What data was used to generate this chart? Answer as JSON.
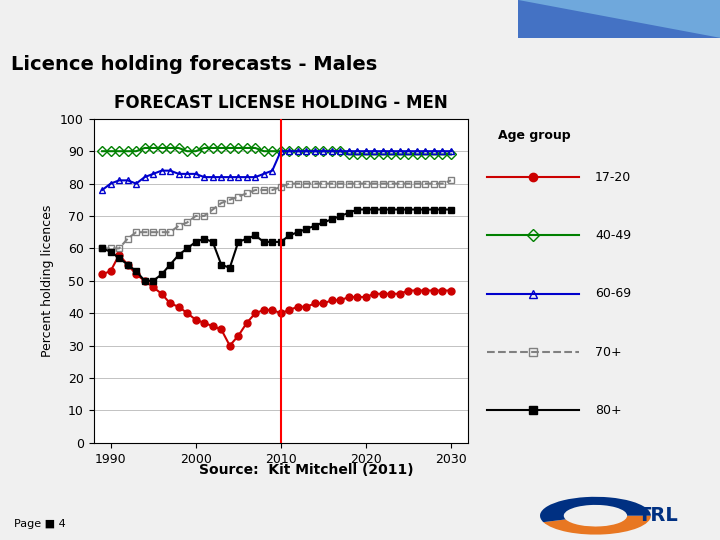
{
  "title_slide": "Licence holding forecasts - Males",
  "chart_title": "FORECAST LICENSE HOLDING - MEN",
  "ylabel": "Percent holding licences",
  "xlabel": "",
  "source": "Source:  Kit Mitchell (2011)",
  "page": "Page ■ 4",
  "vline_x": 2010,
  "ylim": [
    0,
    100
  ],
  "xlim": [
    1988,
    2032
  ],
  "yticks": [
    0,
    10,
    20,
    30,
    40,
    50,
    60,
    70,
    80,
    90,
    100
  ],
  "xticks": [
    1990,
    2000,
    2010,
    2020,
    2030
  ],
  "series_17_20": {
    "label": "17-20",
    "color": "#cc0000",
    "marker": "o",
    "markersize": 5,
    "linewidth": 1.5,
    "x": [
      1989,
      1990,
      1991,
      1992,
      1993,
      1994,
      1995,
      1996,
      1997,
      1998,
      1999,
      2000,
      2001,
      2002,
      2003,
      2004,
      2005,
      2006,
      2007,
      2008,
      2009,
      2010,
      2011,
      2012,
      2013,
      2014,
      2015,
      2016,
      2017,
      2018,
      2019,
      2020,
      2021,
      2022,
      2023,
      2024,
      2025,
      2026,
      2027,
      2028,
      2029,
      2030
    ],
    "y": [
      52,
      53,
      58,
      55,
      52,
      50,
      48,
      46,
      43,
      42,
      40,
      38,
      37,
      36,
      35,
      30,
      33,
      37,
      40,
      41,
      41,
      40,
      41,
      42,
      42,
      43,
      43,
      44,
      44,
      45,
      45,
      45,
      46,
      46,
      46,
      46,
      47,
      47,
      47,
      47,
      47,
      47
    ]
  },
  "series_40_49": {
    "label": "40-49",
    "color": "#008000",
    "marker": "D",
    "markersize": 5,
    "linewidth": 1.5,
    "linestyle": "-",
    "x": [
      1989,
      1990,
      1991,
      1992,
      1993,
      1994,
      1995,
      1996,
      1997,
      1998,
      1999,
      2000,
      2001,
      2002,
      2003,
      2004,
      2005,
      2006,
      2007,
      2008,
      2009,
      2010,
      2011,
      2012,
      2013,
      2014,
      2015,
      2016,
      2017,
      2018,
      2019,
      2020,
      2021,
      2022,
      2023,
      2024,
      2025,
      2026,
      2027,
      2028,
      2029,
      2030
    ],
    "y": [
      90,
      90,
      90,
      90,
      90,
      91,
      91,
      91,
      91,
      91,
      90,
      90,
      91,
      91,
      91,
      91,
      91,
      91,
      91,
      90,
      90,
      90,
      90,
      90,
      90,
      90,
      90,
      90,
      90,
      89,
      89,
      89,
      89,
      89,
      89,
      89,
      89,
      89,
      89,
      89,
      89,
      89
    ]
  },
  "series_60_69": {
    "label": "60-69",
    "color": "#0000cc",
    "marker": "^",
    "markersize": 5,
    "linewidth": 1.5,
    "linestyle": "-",
    "x": [
      1989,
      1990,
      1991,
      1992,
      1993,
      1994,
      1995,
      1996,
      1997,
      1998,
      1999,
      2000,
      2001,
      2002,
      2003,
      2004,
      2005,
      2006,
      2007,
      2008,
      2009,
      2010,
      2011,
      2012,
      2013,
      2014,
      2015,
      2016,
      2017,
      2018,
      2019,
      2020,
      2021,
      2022,
      2023,
      2024,
      2025,
      2026,
      2027,
      2028,
      2029,
      2030
    ],
    "y": [
      78,
      80,
      81,
      81,
      80,
      82,
      83,
      84,
      84,
      83,
      83,
      83,
      82,
      82,
      82,
      82,
      82,
      82,
      82,
      83,
      84,
      90,
      90,
      90,
      90,
      90,
      90,
      90,
      90,
      90,
      90,
      90,
      90,
      90,
      90,
      90,
      90,
      90,
      90,
      90,
      90,
      90
    ]
  },
  "series_70plus": {
    "label": "70+",
    "color": "#808080",
    "marker": "s",
    "markersize": 5,
    "linewidth": 1.5,
    "linestyle": "--",
    "x": [
      1989,
      1990,
      1991,
      1992,
      1993,
      1994,
      1995,
      1996,
      1997,
      1998,
      1999,
      2000,
      2001,
      2002,
      2003,
      2004,
      2005,
      2006,
      2007,
      2008,
      2009,
      2010,
      2011,
      2012,
      2013,
      2014,
      2015,
      2016,
      2017,
      2018,
      2019,
      2020,
      2021,
      2022,
      2023,
      2024,
      2025,
      2026,
      2027,
      2028,
      2029,
      2030
    ],
    "y": [
      60,
      60,
      60,
      63,
      65,
      65,
      65,
      65,
      65,
      67,
      68,
      70,
      70,
      72,
      74,
      75,
      76,
      77,
      78,
      78,
      78,
      79,
      80,
      80,
      80,
      80,
      80,
      80,
      80,
      80,
      80,
      80,
      80,
      80,
      80,
      80,
      80,
      80,
      80,
      80,
      80,
      81
    ]
  },
  "series_80plus": {
    "label": "80+",
    "color": "#000000",
    "marker": "s",
    "markersize": 5,
    "linewidth": 1.5,
    "linestyle": "-",
    "x": [
      1989,
      1990,
      1991,
      1992,
      1993,
      1994,
      1995,
      1996,
      1997,
      1998,
      1999,
      2000,
      2001,
      2002,
      2003,
      2004,
      2005,
      2006,
      2007,
      2008,
      2009,
      2010,
      2011,
      2012,
      2013,
      2014,
      2015,
      2016,
      2017,
      2018,
      2019,
      2020,
      2021,
      2022,
      2023,
      2024,
      2025,
      2026,
      2027,
      2028,
      2029,
      2030
    ],
    "y": [
      60,
      59,
      57,
      55,
      53,
      50,
      50,
      52,
      55,
      58,
      60,
      62,
      63,
      62,
      55,
      54,
      62,
      63,
      64,
      62,
      62,
      62,
      64,
      65,
      66,
      67,
      68,
      69,
      70,
      71,
      72,
      72,
      72,
      72,
      72,
      72,
      72,
      72,
      72,
      72,
      72,
      72
    ]
  },
  "bg_color": "#f0f0f0",
  "plot_bg_color": "#ffffff",
  "header_color": "#c0c0c0",
  "blue_bar_color": "#4472c4"
}
